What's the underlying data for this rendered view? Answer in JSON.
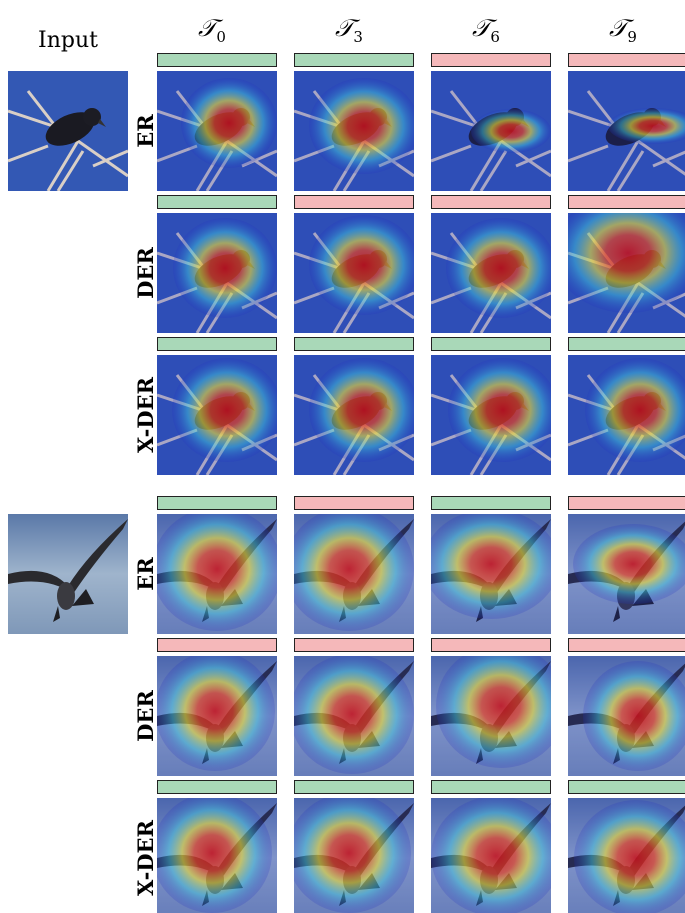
{
  "input_label": "Input",
  "columns": [
    {
      "symbol": "𝒯",
      "sub": "0"
    },
    {
      "symbol": "𝒯",
      "sub": "3"
    },
    {
      "symbol": "𝒯",
      "sub": "6"
    },
    {
      "symbol": "𝒯",
      "sub": "9"
    }
  ],
  "groups": [
    {
      "rows": [
        {
          "label": "ER",
          "correct": [
            true,
            true,
            false,
            false
          ]
        },
        {
          "label": "DER",
          "correct": [
            true,
            false,
            false,
            false
          ]
        },
        {
          "label": "X-DER",
          "correct": [
            true,
            true,
            true,
            true
          ]
        }
      ]
    },
    {
      "rows": [
        {
          "label": "ER",
          "correct": [
            true,
            false,
            true,
            false
          ]
        },
        {
          "label": "DER",
          "correct": [
            false,
            false,
            false,
            false
          ]
        },
        {
          "label": "X-DER",
          "correct": [
            true,
            true,
            true,
            true
          ]
        }
      ]
    }
  ],
  "bar_colors": {
    "correct": "#a9d8b8",
    "wrong": "#f5b8ba"
  }
}
